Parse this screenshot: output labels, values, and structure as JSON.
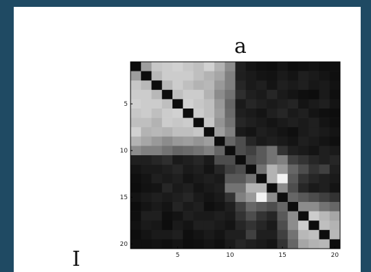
{
  "chart_data": {
    "type": "heatmap",
    "title": "a",
    "rows": 20,
    "cols": 20,
    "x_ticks": [
      5,
      10,
      15,
      20
    ],
    "y_ticks": [
      5,
      10,
      15,
      20
    ],
    "colormap": "gray",
    "values": [
      [
        0.05,
        0.62,
        0.78,
        0.8,
        0.82,
        0.78,
        0.75,
        0.82,
        0.7,
        0.55,
        0.12,
        0.08,
        0.06,
        0.05,
        0.08,
        0.05,
        0.06,
        0.07,
        0.05,
        0.06
      ],
      [
        0.62,
        0.05,
        0.72,
        0.8,
        0.8,
        0.8,
        0.75,
        0.7,
        0.65,
        0.5,
        0.12,
        0.1,
        0.08,
        0.07,
        0.1,
        0.08,
        0.12,
        0.1,
        0.08,
        0.06
      ],
      [
        0.78,
        0.72,
        0.05,
        0.72,
        0.8,
        0.75,
        0.7,
        0.72,
        0.6,
        0.5,
        0.15,
        0.1,
        0.12,
        0.08,
        0.12,
        0.1,
        0.12,
        0.09,
        0.1,
        0.07
      ],
      [
        0.8,
        0.8,
        0.72,
        0.05,
        0.75,
        0.8,
        0.8,
        0.7,
        0.55,
        0.45,
        0.18,
        0.12,
        0.1,
        0.15,
        0.1,
        0.08,
        0.06,
        0.05,
        0.1,
        0.06
      ],
      [
        0.82,
        0.8,
        0.8,
        0.75,
        0.05,
        0.82,
        0.78,
        0.75,
        0.6,
        0.4,
        0.1,
        0.15,
        0.12,
        0.1,
        0.12,
        0.14,
        0.08,
        0.1,
        0.12,
        0.08
      ],
      [
        0.78,
        0.8,
        0.75,
        0.8,
        0.82,
        0.05,
        0.8,
        0.75,
        0.62,
        0.42,
        0.12,
        0.1,
        0.08,
        0.12,
        0.15,
        0.1,
        0.12,
        0.08,
        0.06,
        0.05
      ],
      [
        0.75,
        0.75,
        0.7,
        0.8,
        0.78,
        0.8,
        0.05,
        0.78,
        0.58,
        0.45,
        0.15,
        0.12,
        0.1,
        0.08,
        0.1,
        0.12,
        0.1,
        0.12,
        0.08,
        0.06
      ],
      [
        0.82,
        0.7,
        0.72,
        0.7,
        0.75,
        0.75,
        0.78,
        0.05,
        0.62,
        0.5,
        0.1,
        0.08,
        0.12,
        0.1,
        0.08,
        0.06,
        0.1,
        0.12,
        0.1,
        0.08
      ],
      [
        0.7,
        0.65,
        0.6,
        0.55,
        0.6,
        0.62,
        0.58,
        0.62,
        0.05,
        0.4,
        0.3,
        0.15,
        0.1,
        0.12,
        0.1,
        0.08,
        0.12,
        0.1,
        0.08,
        0.06
      ],
      [
        0.55,
        0.5,
        0.5,
        0.45,
        0.4,
        0.42,
        0.45,
        0.5,
        0.4,
        0.05,
        0.3,
        0.25,
        0.35,
        0.45,
        0.2,
        0.12,
        0.1,
        0.08,
        0.12,
        0.1
      ],
      [
        0.12,
        0.12,
        0.15,
        0.18,
        0.1,
        0.12,
        0.15,
        0.1,
        0.3,
        0.3,
        0.05,
        0.3,
        0.35,
        0.45,
        0.5,
        0.25,
        0.2,
        0.15,
        0.12,
        0.15
      ],
      [
        0.08,
        0.1,
        0.1,
        0.12,
        0.15,
        0.1,
        0.12,
        0.08,
        0.15,
        0.25,
        0.3,
        0.05,
        0.45,
        0.7,
        0.6,
        0.4,
        0.3,
        0.2,
        0.25,
        0.12
      ],
      [
        0.06,
        0.08,
        0.12,
        0.1,
        0.12,
        0.08,
        0.1,
        0.12,
        0.1,
        0.35,
        0.35,
        0.45,
        0.05,
        0.7,
        0.95,
        0.35,
        0.2,
        0.15,
        0.12,
        0.1
      ],
      [
        0.05,
        0.07,
        0.08,
        0.15,
        0.1,
        0.12,
        0.08,
        0.1,
        0.12,
        0.45,
        0.45,
        0.7,
        0.7,
        0.05,
        0.55,
        0.3,
        0.15,
        0.1,
        0.12,
        0.08
      ],
      [
        0.08,
        0.1,
        0.12,
        0.1,
        0.12,
        0.15,
        0.1,
        0.08,
        0.1,
        0.2,
        0.5,
        0.6,
        0.95,
        0.55,
        0.05,
        0.4,
        0.35,
        0.3,
        0.25,
        0.2
      ],
      [
        0.05,
        0.08,
        0.1,
        0.08,
        0.14,
        0.1,
        0.12,
        0.06,
        0.08,
        0.12,
        0.25,
        0.4,
        0.35,
        0.3,
        0.4,
        0.05,
        0.55,
        0.55,
        0.45,
        0.4
      ],
      [
        0.06,
        0.12,
        0.12,
        0.06,
        0.08,
        0.12,
        0.1,
        0.1,
        0.12,
        0.1,
        0.2,
        0.3,
        0.2,
        0.15,
        0.35,
        0.55,
        0.05,
        0.8,
        0.72,
        0.65
      ],
      [
        0.07,
        0.1,
        0.09,
        0.05,
        0.1,
        0.08,
        0.12,
        0.12,
        0.1,
        0.08,
        0.15,
        0.2,
        0.15,
        0.1,
        0.3,
        0.55,
        0.8,
        0.05,
        0.75,
        0.7
      ],
      [
        0.05,
        0.08,
        0.1,
        0.1,
        0.12,
        0.06,
        0.08,
        0.1,
        0.08,
        0.12,
        0.12,
        0.25,
        0.12,
        0.12,
        0.25,
        0.45,
        0.72,
        0.75,
        0.05,
        0.72
      ],
      [
        0.06,
        0.06,
        0.07,
        0.06,
        0.08,
        0.05,
        0.06,
        0.08,
        0.06,
        0.1,
        0.15,
        0.12,
        0.1,
        0.08,
        0.2,
        0.4,
        0.65,
        0.7,
        0.72,
        0.05
      ]
    ]
  },
  "side_label": "I"
}
